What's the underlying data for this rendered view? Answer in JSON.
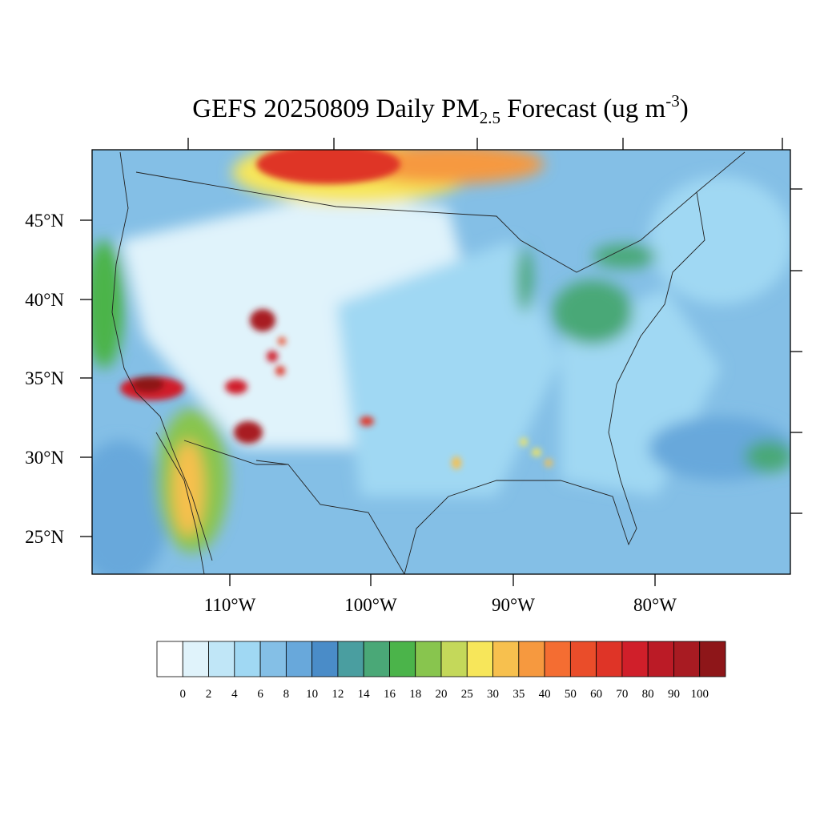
{
  "title_parts": [
    "GEFS 20250809 Daily PM",
    "2.5",
    " Forecast (ug m",
    "-3",
    ")"
  ],
  "lat_labels": [
    "45°N",
    "40°N",
    "35°N",
    "30°N",
    "25°N"
  ],
  "lon_labels": [
    "110°W",
    "100°W",
    "90°W",
    "80°W"
  ],
  "colorbar": {
    "levels": [
      0,
      2,
      4,
      6,
      8,
      10,
      12,
      14,
      16,
      18,
      20,
      25,
      30,
      35,
      40,
      50,
      60,
      70,
      80,
      90,
      100
    ],
    "colors": [
      "#ffffff",
      "#e0f3fb",
      "#c0e6f7",
      "#a0d8f3",
      "#84bfe6",
      "#68a8db",
      "#4a8cc8",
      "#4a9ea0",
      "#4aa877",
      "#4bb44a",
      "#88c54e",
      "#c4d85a",
      "#f7e65a",
      "#f7c04e",
      "#f6993f",
      "#f46d32",
      "#ea4d2a",
      "#df3427",
      "#d01f2a",
      "#bb1b26",
      "#a81b22",
      "#8e1619"
    ]
  }
}
